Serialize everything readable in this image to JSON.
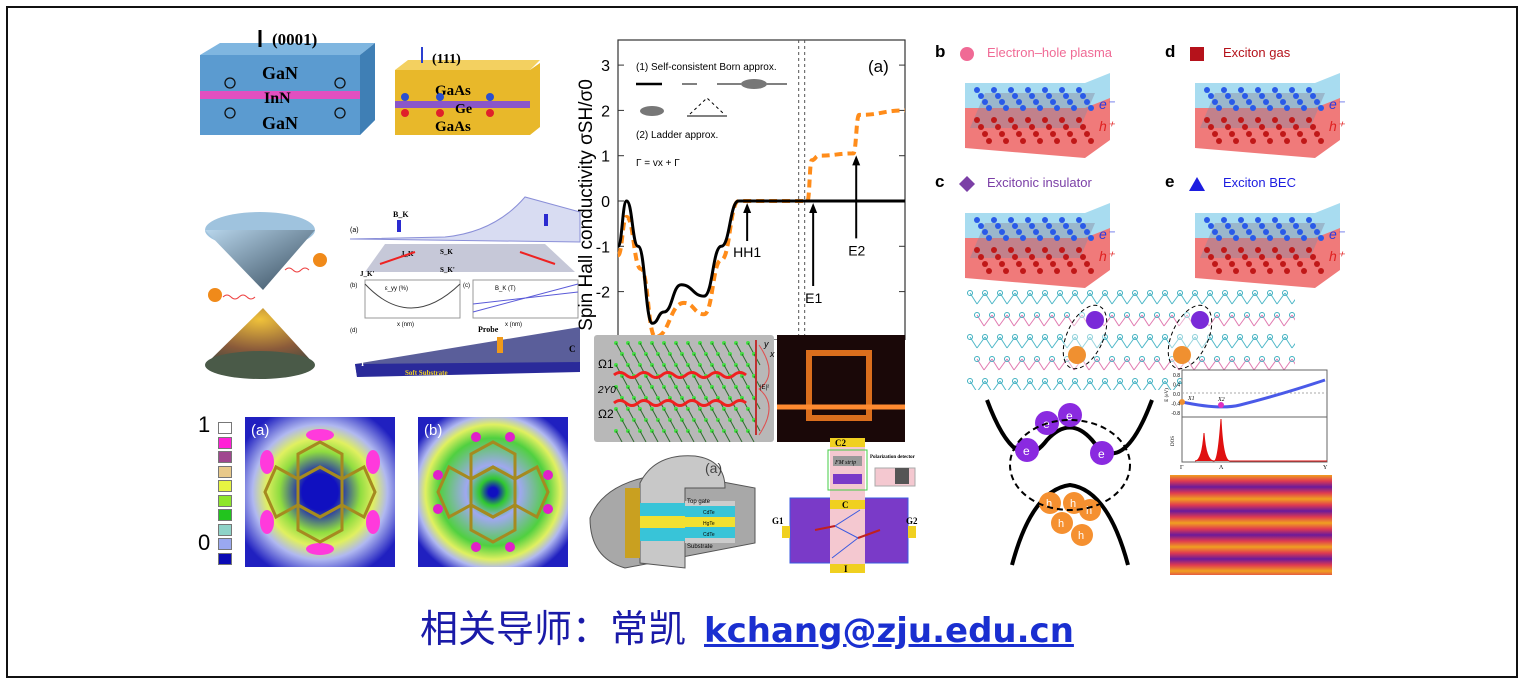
{
  "quantum_wells": {
    "gan": {
      "direction": "(0001)",
      "top": "GaN",
      "middle": "InN",
      "bottom": "GaN"
    },
    "gaas": {
      "direction": "(111)",
      "top": "GaAs",
      "middle": "Ge",
      "bottom": "GaAs"
    }
  },
  "strained_graphene": {
    "panel_a": "(a)",
    "panel_b": "(b)",
    "panel_c": "(c)",
    "panel_d": "(d)",
    "bk_label": "B_K",
    "jk": "J_K",
    "jk_prime": "J_K'",
    "sk": "S_K",
    "sk_prime": "S_K'",
    "strain_label": "ε_yy (%)",
    "field_label": "B_K (T)",
    "x_label": "x (nm)",
    "probe": "Probe",
    "substrate": "Soft Substrate",
    "c_label": "C",
    "i_label": "I"
  },
  "charge_maps": {
    "colorbar_max": "1",
    "colorbar_min": "0",
    "colorbar_colors": [
      "#ffffff",
      "#ff1fd6",
      "#a0468f",
      "#e8c98a",
      "#e6f542",
      "#8ee62a",
      "#22c41e",
      "#8fd3c8",
      "#9aa8f0",
      "#0a0ab4"
    ],
    "panel_a": "(a)",
    "panel_b": "(b)"
  },
  "chart_data": {
    "type": "line",
    "ylabel": "Spin Hall conductivity σSH/σ0",
    "panel_label": "(a)",
    "ylim": [
      -3,
      3.4
    ],
    "yticks": [
      "3",
      "2",
      "1",
      "0",
      "-1",
      "-2"
    ],
    "ytick_values": [
      3,
      2,
      1,
      0,
      -1,
      -2
    ],
    "xlim": [
      0,
      10
    ],
    "axis_break_x": 6.4,
    "legend": {
      "line1": "(1) Self-consistent Born approx.",
      "line2": "(2) Ladder approx.",
      "ladder_eq": "Γ  =  vx  +  Γ"
    },
    "annotations": [
      {
        "text": "HH1",
        "x": 4.5,
        "y": 0
      },
      {
        "text": "E1",
        "x": 6.8,
        "y": 0
      },
      {
        "text": "E2",
        "x": 8.3,
        "y": 1.05
      }
    ],
    "series": [
      {
        "name": "Self-consistent Born",
        "color": "#000000",
        "dash": false,
        "x": [
          0,
          0.3,
          0.7,
          1.2,
          1.6,
          2.2,
          3.0,
          3.6,
          4.2,
          6.3,
          10
        ],
        "y": [
          -1,
          0,
          -1,
          -2.7,
          -2.45,
          -1.85,
          -2.1,
          -1.0,
          0,
          0,
          0
        ]
      },
      {
        "name": "Ladder",
        "color": "#ff8c1a",
        "dash": true,
        "x": [
          0,
          0.3,
          0.8,
          1.3,
          2.3,
          3.0,
          3.6,
          4.2,
          6.6,
          6.75,
          7.0,
          8.2,
          8.4,
          10
        ],
        "y": [
          -1.2,
          -0.35,
          -1.5,
          -3.0,
          -2.25,
          -2.5,
          -1.3,
          0,
          0,
          0.9,
          1.0,
          1.05,
          1.9,
          2.0
        ]
      }
    ]
  },
  "valley_device": {
    "omega1": "Ω1",
    "omega2": "Ω2",
    "width": "2Y0",
    "field": "|E|²",
    "x": "x",
    "y": "y"
  },
  "hgte_device": {
    "panel": "(a)",
    "top_gate": "Top gate",
    "cdte_top": "CdTe",
    "hgte": "HgTe",
    "cdte_bottom": "CdTe",
    "substrate": "Substrate"
  },
  "spin_device": {
    "c2": "C2",
    "c": "C",
    "fm_strip": "FM strip",
    "detector": "Polarization detector",
    "g1": "G1",
    "g2": "G2",
    "i": "I"
  },
  "exciton_phases": [
    {
      "letter": "b",
      "label": "Electron–hole plasma",
      "color": "#f06a95",
      "marker": "circle"
    },
    {
      "letter": "d",
      "label": "Exciton gas",
      "color": "#b5121b",
      "marker": "square"
    },
    {
      "letter": "c",
      "label": "Excitonic insulator",
      "color": "#7b3fa6",
      "marker": "diamond"
    },
    {
      "letter": "e",
      "label": "Exciton BEC",
      "color": "#1d1de0",
      "marker": "triangle"
    }
  ],
  "carrier_labels": {
    "electron": "e⁻",
    "hole": "h⁺"
  },
  "band_figure": {
    "electron": "e",
    "hole": "h"
  },
  "dos_chart": {
    "yticks": [
      "0.8",
      "0.4",
      "0.0",
      "-0.4",
      "-0.8"
    ],
    "ylabel_top": "E (eV)",
    "ylabel_bottom": "DOS",
    "xticks": [
      "Γ",
      "Λ",
      "Y"
    ],
    "point1": "X1",
    "point2": "X2"
  },
  "footer": {
    "advisor": "相关导师：常凯",
    "email": "kchang@zju.edu.cn"
  }
}
